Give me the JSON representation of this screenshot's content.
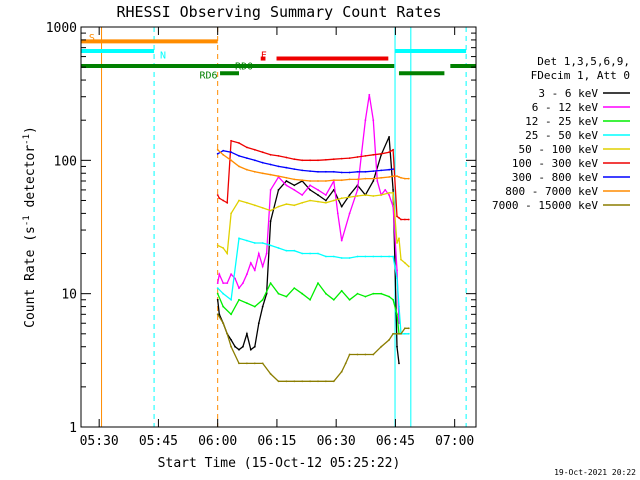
{
  "chart_data": {
    "type": "line",
    "title": "RHESSI Observing Summary Count Rates",
    "xlabel": "Start Time (15-Oct-12 05:25:22)",
    "ylabel_prefix": "Count Rate (s",
    "ylabel_sup": "-1",
    "ylabel_suffix": " detector",
    "ylabel_end": ")",
    "x_unit": "minutes since 05:25:22",
    "xlim": [
      0,
      100
    ],
    "ylim": [
      1,
      1000
    ],
    "y_scale": "log",
    "grid": false,
    "x_ticks": [
      {
        "t": 4.6,
        "label": "05:30"
      },
      {
        "t": 19.6,
        "label": "05:45"
      },
      {
        "t": 34.6,
        "label": "06:00"
      },
      {
        "t": 49.6,
        "label": "06:15"
      },
      {
        "t": 64.6,
        "label": "06:30"
      },
      {
        "t": 79.6,
        "label": "06:45"
      },
      {
        "t": 94.6,
        "label": "07:00"
      }
    ],
    "y_ticks": [
      {
        "v": 1,
        "label": "1"
      },
      {
        "v": 10,
        "label": "10"
      },
      {
        "v": 100,
        "label": "100"
      },
      {
        "v": 1000,
        "label": "1000"
      }
    ],
    "legend": {
      "position": "right",
      "header": [
        "Det 1,3,5,6,9,",
        "FDecim 1, Att 0"
      ],
      "entries": [
        {
          "label": "3 - 6 keV",
          "color": "#000000"
        },
        {
          "label": "6 - 12 keV",
          "color": "#ff00ff"
        },
        {
          "label": "12 - 25 keV",
          "color": "#00ee00"
        },
        {
          "label": "25 - 50 keV",
          "color": "#00ffff"
        },
        {
          "label": "50 - 100 keV",
          "color": "#e0d000"
        },
        {
          "label": "100 - 300 keV",
          "color": "#ee0000"
        },
        {
          "label": "300 - 800 keV",
          "color": "#0000ff"
        },
        {
          "label": "800 - 7000 keV",
          "color": "#ff8c00"
        },
        {
          "label": "7000 - 15000 keV",
          "color": "#8b7d00"
        }
      ]
    },
    "series": [
      {
        "name": "3 - 6 keV",
        "color": "#000000",
        "x": [
          34.6,
          35,
          36,
          37,
          38,
          39,
          40,
          41,
          42,
          43,
          44,
          45,
          46,
          47,
          48,
          50,
          52,
          54,
          56,
          58,
          60,
          62,
          64,
          66,
          68,
          70,
          72,
          74,
          76,
          78,
          79,
          80,
          80.5
        ],
        "y": [
          9,
          7,
          6,
          5,
          4.5,
          4,
          3.8,
          4,
          5,
          3.8,
          4,
          6,
          8,
          10,
          35,
          60,
          70,
          65,
          70,
          60,
          55,
          50,
          60,
          45,
          55,
          65,
          55,
          70,
          110,
          150,
          60,
          4,
          3
        ]
      },
      {
        "name": "6 - 12 keV",
        "color": "#ff00ff",
        "x": [
          34.6,
          35,
          36,
          37,
          38,
          39,
          40,
          41,
          42,
          43,
          44,
          45,
          46,
          47,
          48,
          50,
          52,
          54,
          56,
          58,
          60,
          62,
          64,
          65,
          66,
          68,
          70,
          71,
          72,
          73,
          74,
          75,
          76,
          77,
          78,
          79,
          80,
          80.5
        ],
        "y": [
          12,
          14,
          12,
          12,
          14,
          13,
          11,
          12,
          14,
          17,
          15,
          20,
          16,
          20,
          60,
          75,
          65,
          60,
          55,
          65,
          60,
          55,
          70,
          40,
          25,
          40,
          60,
          110,
          200,
          310,
          200,
          70,
          55,
          60,
          55,
          45,
          15,
          6
        ]
      },
      {
        "name": "12 - 25 keV",
        "color": "#00ee00",
        "x": [
          34.6,
          36,
          38,
          40,
          42,
          44,
          46,
          48,
          50,
          52,
          54,
          56,
          58,
          60,
          62,
          64,
          66,
          68,
          70,
          72,
          74,
          76,
          78,
          79,
          80,
          80.5
        ],
        "y": [
          10,
          8,
          7,
          9,
          8.5,
          8,
          9,
          12,
          10,
          9.5,
          11,
          10,
          9,
          12,
          10,
          9,
          10.5,
          9,
          10,
          9.5,
          10,
          10,
          9.5,
          9,
          7,
          5
        ]
      },
      {
        "name": "25 - 50 keV",
        "color": "#00ffff",
        "x": [
          34.6,
          36,
          38,
          40,
          42,
          44,
          46,
          48,
          50,
          52,
          54,
          56,
          58,
          60,
          62,
          64,
          66,
          68,
          70,
          72,
          74,
          76,
          78,
          79,
          80,
          80.5,
          81,
          82,
          83
        ],
        "y": [
          11,
          10,
          9,
          26,
          25,
          24,
          24,
          23,
          22,
          21,
          21,
          20,
          20,
          20,
          19,
          19,
          18.5,
          18.5,
          19,
          19,
          19,
          19,
          19,
          19,
          13,
          8,
          5,
          5,
          5
        ]
      },
      {
        "name": "50 - 100 keV",
        "color": "#e0d000",
        "x": [
          34.6,
          36,
          37,
          38,
          40,
          42,
          44,
          46,
          48,
          50,
          52,
          54,
          56,
          58,
          60,
          62,
          64,
          66,
          68,
          70,
          72,
          74,
          76,
          78,
          79,
          80,
          80.5,
          81,
          82,
          83
        ],
        "y": [
          23,
          22,
          20,
          40,
          50,
          48,
          46,
          44,
          42,
          45,
          47,
          46,
          48,
          50,
          49,
          48,
          50,
          52,
          53,
          54,
          55,
          54,
          55,
          57,
          57,
          24,
          26,
          18,
          17,
          16
        ]
      },
      {
        "name": "100 - 300 keV",
        "color": "#ee0000",
        "x": [
          34.6,
          35,
          36,
          37,
          38,
          40,
          42,
          44,
          46,
          48,
          50,
          52,
          54,
          56,
          58,
          60,
          62,
          64,
          66,
          68,
          70,
          72,
          74,
          76,
          78,
          79,
          80,
          80.5,
          81,
          82,
          83
        ],
        "y": [
          55,
          52,
          50,
          48,
          140,
          135,
          125,
          120,
          115,
          110,
          108,
          105,
          102,
          100,
          100,
          100,
          101,
          102,
          103,
          104,
          106,
          108,
          110,
          112,
          115,
          120,
          38,
          37,
          36,
          36,
          36
        ]
      },
      {
        "name": "300 - 800 keV",
        "color": "#0000ff",
        "x": [
          34.6,
          36,
          38,
          40,
          42,
          44,
          46,
          48,
          50,
          52,
          54,
          56,
          58,
          60,
          62,
          64,
          66,
          68,
          70,
          72,
          74,
          76,
          78,
          79
        ],
        "y": [
          112,
          118,
          115,
          108,
          104,
          100,
          96,
          93,
          90,
          88,
          86,
          84,
          83,
          82,
          82,
          82,
          81,
          81,
          82,
          82,
          83,
          84,
          85,
          86
        ]
      },
      {
        "name": "800 - 7000 keV",
        "color": "#ff8c00",
        "x": [
          34.6,
          36,
          38,
          40,
          42,
          44,
          46,
          48,
          50,
          52,
          54,
          56,
          58,
          60,
          62,
          64,
          66,
          68,
          70,
          72,
          74,
          76,
          78,
          79,
          80,
          80.5,
          81,
          82,
          83
        ],
        "y": [
          120,
          110,
          100,
          90,
          85,
          82,
          80,
          78,
          76,
          74,
          72,
          71,
          70,
          70,
          70,
          71,
          71,
          72,
          72,
          73,
          73,
          74,
          75,
          76,
          76,
          75,
          74,
          73,
          73
        ]
      },
      {
        "name": "7000 - 15000 keV",
        "color": "#8b7d00",
        "x": [
          34.6,
          36,
          37,
          38,
          40,
          42,
          44,
          46,
          48,
          50,
          52,
          54,
          56,
          58,
          60,
          62,
          64,
          66,
          67,
          68,
          70,
          72,
          74,
          76,
          78,
          79,
          80,
          80.5,
          81,
          82,
          83
        ],
        "y": [
          7,
          6,
          5,
          4,
          3,
          3,
          3,
          3,
          2.5,
          2.2,
          2.2,
          2.2,
          2.2,
          2.2,
          2.2,
          2.2,
          2.2,
          2.6,
          3,
          3.5,
          3.5,
          3.5,
          3.5,
          4,
          4.5,
          5,
          5,
          5,
          5,
          5.5,
          5.5
        ]
      }
    ],
    "annotations": [
      {
        "label": "S",
        "color": "#ff8c00",
        "x_start": 0,
        "x_end": 34.6,
        "y": 780,
        "label_at": 2.0,
        "label_y": 840
      },
      {
        "label": "N",
        "color": "#00ffff",
        "x_start": 0,
        "x_end": 18.5,
        "y": 660,
        "label_at": 20.0,
        "label_y": 620
      },
      {
        "label": "",
        "color": "#00ffff",
        "x_start": 79.5,
        "x_end": 97.5,
        "y": 660,
        "label_at": null,
        "label_y": null
      },
      {
        "label": "F",
        "color": "#ee0000",
        "x_start": 49.5,
        "x_end": 77.8,
        "y": 580,
        "label_at": 45.5,
        "label_y": 620
      },
      {
        "label": "",
        "color": "#ee0000",
        "x_start": 45.5,
        "x_end": 46.7,
        "y": 580,
        "label_at": null,
        "label_y": null
      },
      {
        "label": "RD0",
        "color": "#008000",
        "x_start": 0,
        "x_end": 79.3,
        "y": 510,
        "label_at": 39.0,
        "label_y": 515
      },
      {
        "label": "RD6",
        "color": "#008000",
        "x_start": 35.2,
        "x_end": 40.0,
        "y": 450,
        "label_at": 30.0,
        "label_y": 440
      },
      {
        "label": "",
        "color": "#008000",
        "x_start": 80.5,
        "x_end": 92.0,
        "y": 450,
        "label_at": null,
        "label_y": null
      },
      {
        "label": "",
        "color": "#008000",
        "x_start": 93.5,
        "x_end": 100,
        "y": 510,
        "label_at": null,
        "label_y": null
      }
    ],
    "vertical_markers": [
      {
        "t": 5.2,
        "color": "#ff8c00",
        "style": "solid"
      },
      {
        "t": 18.5,
        "color": "#00ffff",
        "style": "dashed"
      },
      {
        "t": 34.6,
        "color": "#ff8c00",
        "style": "dashed"
      },
      {
        "t": 79.5,
        "color": "#00ffff",
        "style": "solid"
      },
      {
        "t": 83.5,
        "color": "#00ffff",
        "style": "solid"
      },
      {
        "t": 97.5,
        "color": "#00ffff",
        "style": "dashed"
      }
    ]
  },
  "footer": {
    "timestamp": "19-Oct-2021 20:22"
  }
}
